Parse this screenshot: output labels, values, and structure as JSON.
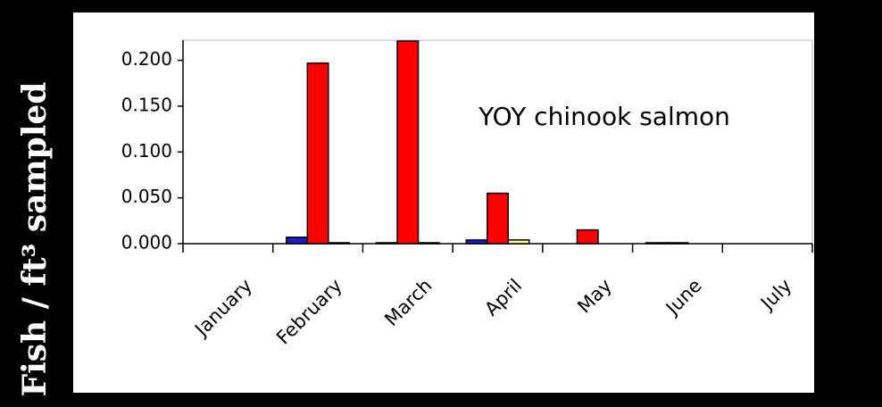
{
  "chart_data": {
    "type": "bar",
    "y_label": "Fish / ft³ sampled",
    "annotation": "YOY chinook salmon",
    "categories": [
      "January",
      "February",
      "March",
      "April",
      "May",
      "June",
      "July"
    ],
    "series": [
      {
        "color": "#1c1ccc",
        "values": [
          0,
          0.007,
          0.001,
          0.004,
          0,
          0.001,
          0
        ]
      },
      {
        "color": "#ff0000",
        "values": [
          0,
          0.197,
          0.221,
          0.055,
          0.015,
          0.001,
          0
        ]
      },
      {
        "color": "#ffff99",
        "values": [
          0,
          0.001,
          0.001,
          0.004,
          0,
          0,
          0
        ]
      }
    ],
    "ylim": [
      0,
      0.222
    ],
    "yticks": [
      {
        "value": 0,
        "label": "0.000"
      },
      {
        "value": 0.05,
        "label": "0.050"
      },
      {
        "value": 0.1,
        "label": "0.100"
      },
      {
        "value": 0.15,
        "label": "0.150"
      },
      {
        "value": 0.2,
        "label": "0.200"
      }
    ]
  }
}
